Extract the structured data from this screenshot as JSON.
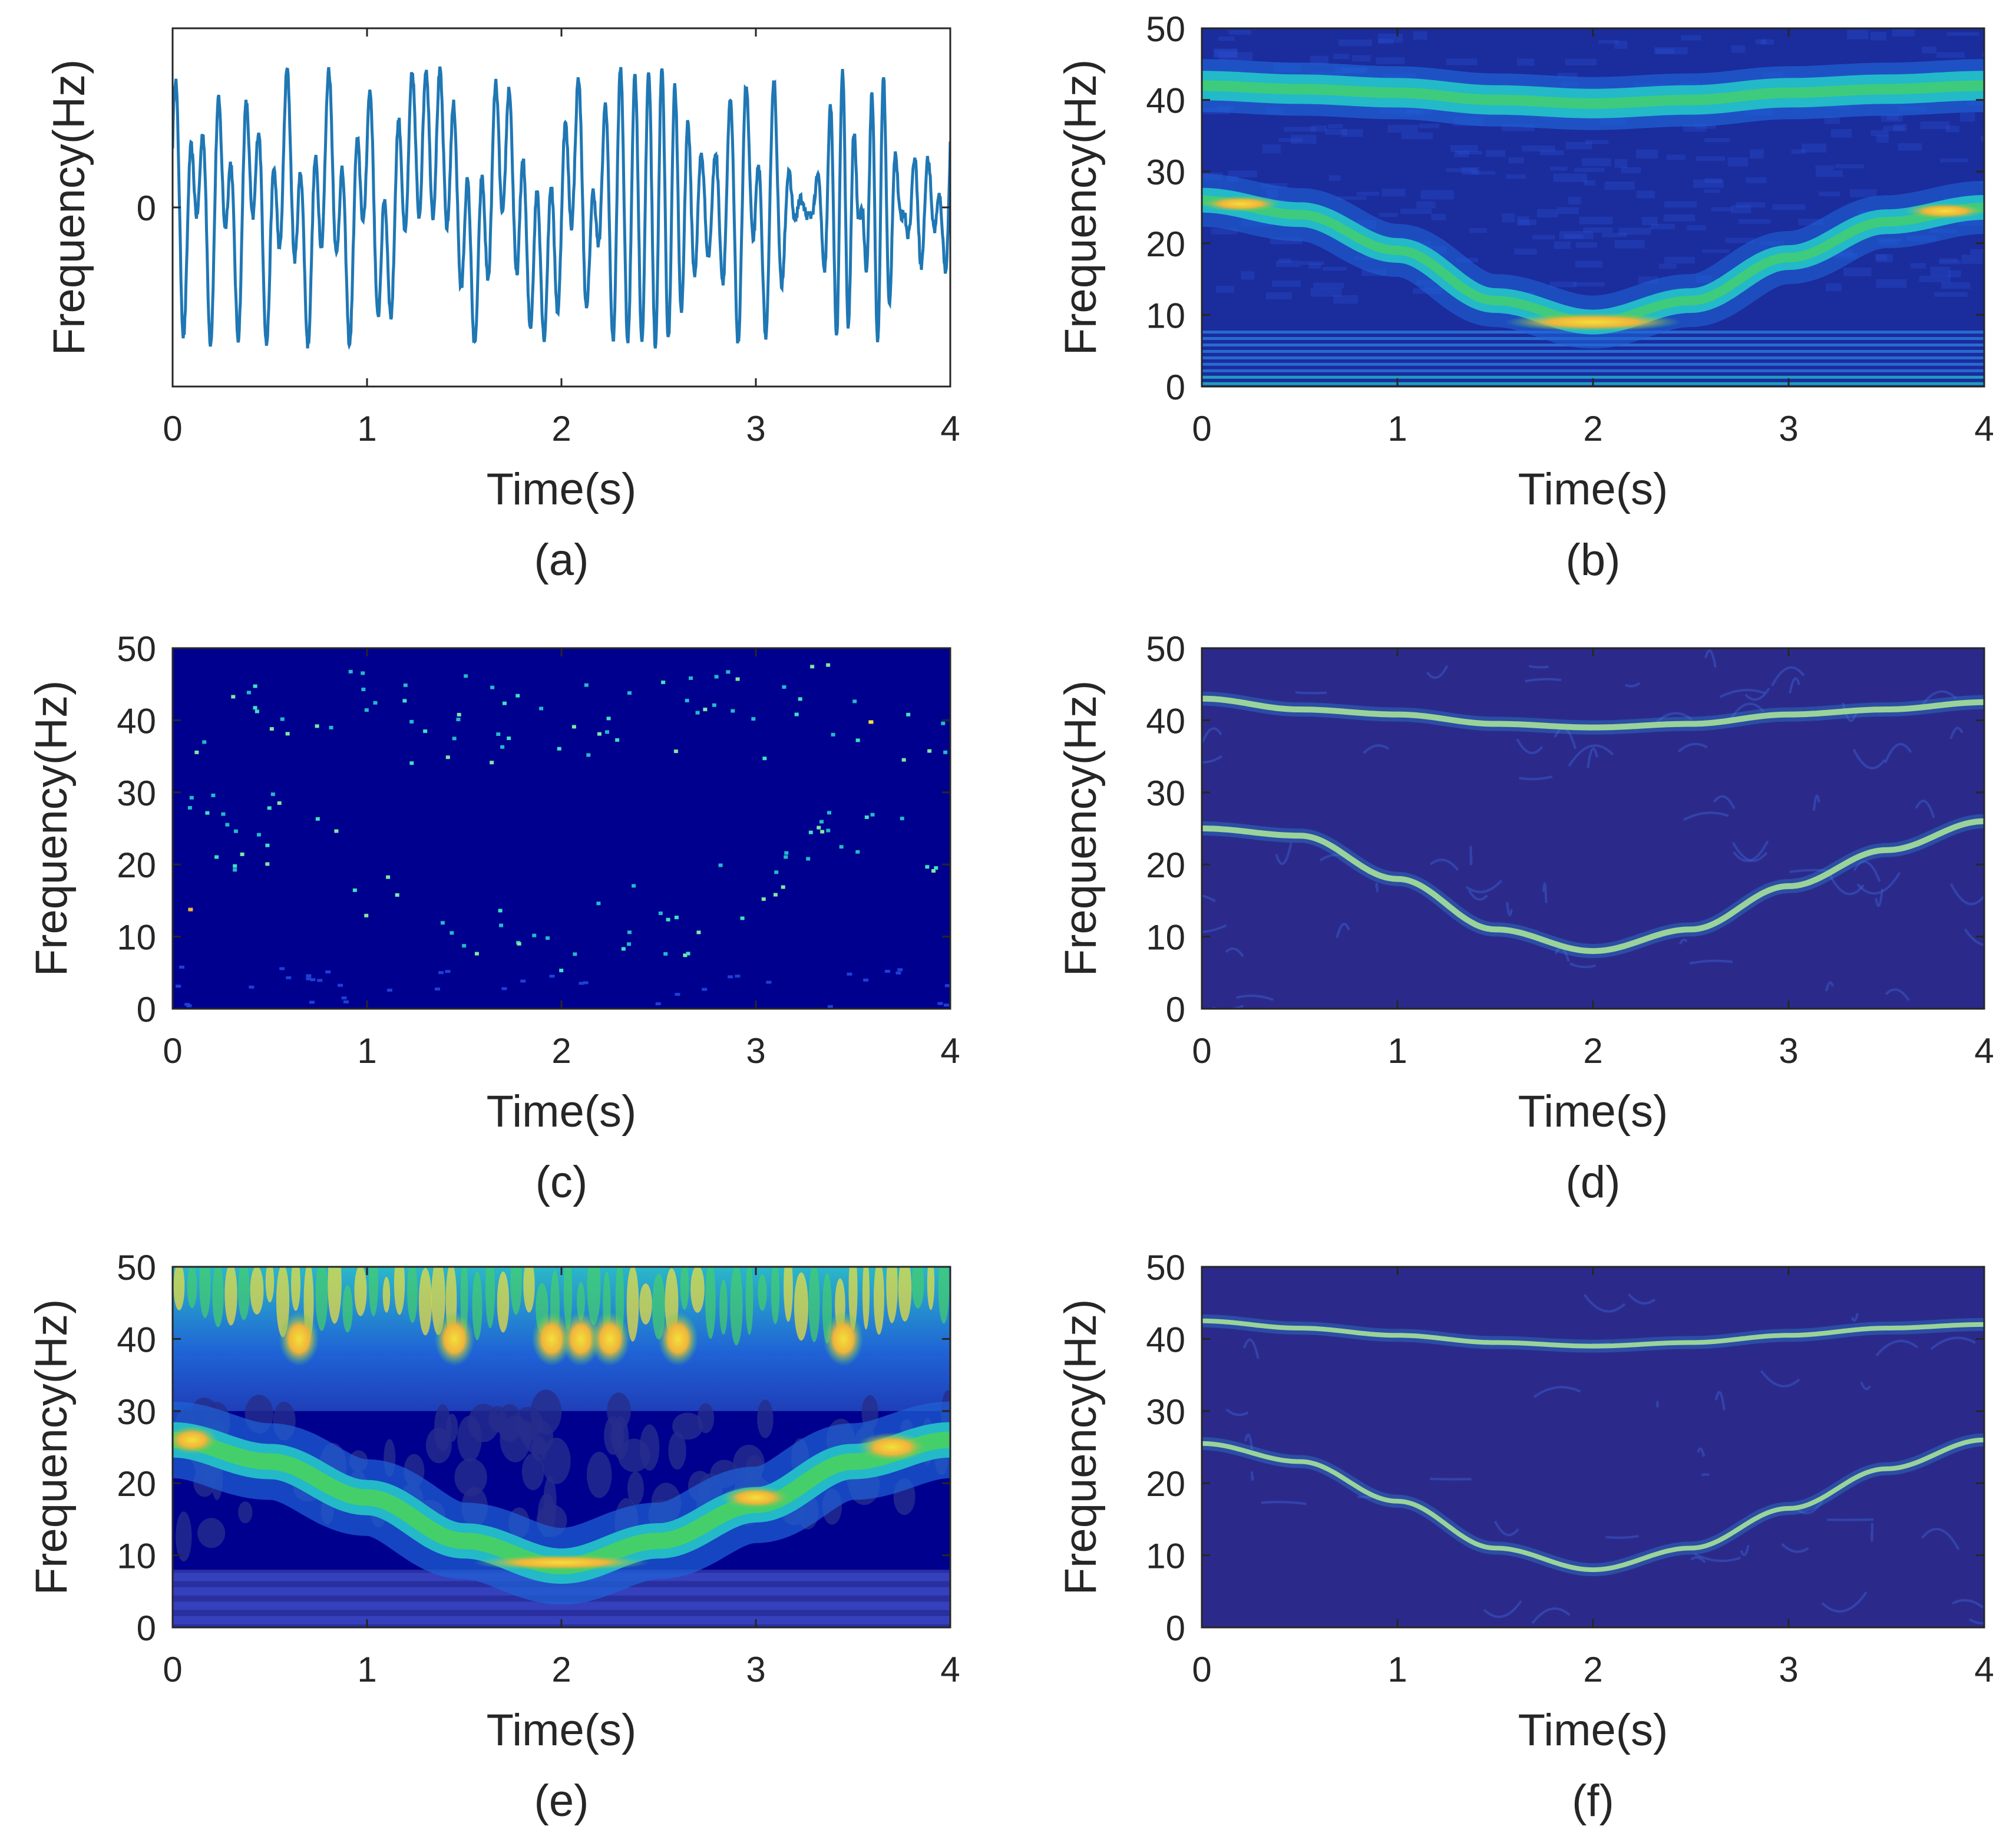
{
  "figure_caption_labels": [
    "(a)",
    "(b)",
    "(c)",
    "(d)",
    "(e)",
    "(f)"
  ],
  "colormap": {
    "background_dark": "#00008f",
    "background_purple": "#2b2a8a",
    "mid_blue": "#1f62d6",
    "cyan": "#23b9c9",
    "green": "#45cf6a",
    "yellow": "#f2e03a",
    "orange": "#f0b43a"
  },
  "signal_color": "#1f77b4",
  "chart_data": [
    {
      "id": "a",
      "type": "line",
      "caption": "(a)",
      "xlabel": "Time(s)",
      "ylabel": "Frequency(Hz)",
      "xlim": [
        0,
        4
      ],
      "ylim": [
        -1.1,
        1.1
      ],
      "xticks": [
        "0",
        "1",
        "2",
        "3",
        "4"
      ],
      "yticks": [
        "0"
      ],
      "series": [
        {
          "name": "signal",
          "description": "oscillating signal, sum of a ~40 Hz and a time-varying 8-26 Hz component",
          "amplitude_range": [
            -0.85,
            0.85
          ]
        }
      ]
    },
    {
      "id": "b",
      "type": "heatmap",
      "caption": "(b)",
      "xlabel": "Time(s)",
      "ylabel": "Frequency(Hz)",
      "xlim": [
        0,
        4
      ],
      "ylim": [
        0,
        50
      ],
      "xticks": [
        "0",
        "1",
        "2",
        "3",
        "4"
      ],
      "yticks": [
        "0",
        "10",
        "20",
        "30",
        "40",
        "50"
      ],
      "ridges": [
        {
          "name": "upper component",
          "t": [
            0,
            0.5,
            1,
            1.5,
            2,
            2.5,
            3,
            3.5,
            4
          ],
          "f": [
            42,
            41.5,
            41,
            40,
            39.5,
            40,
            41,
            41.5,
            42
          ]
        },
        {
          "name": "lower component",
          "t": [
            0,
            0.5,
            1,
            1.5,
            2,
            2.5,
            3,
            3.5,
            4
          ],
          "f": [
            26,
            24,
            19,
            12,
            9,
            12,
            18,
            23,
            25
          ]
        }
      ]
    },
    {
      "id": "c",
      "type": "heatmap",
      "caption": "(c)",
      "xlabel": "Time(s)",
      "ylabel": "Frequency(Hz)",
      "xlim": [
        0,
        4
      ],
      "ylim": [
        0,
        50
      ],
      "xticks": [
        "0",
        "1",
        "2",
        "3",
        "4"
      ],
      "yticks": [
        "0",
        "10",
        "20",
        "30",
        "40",
        "50"
      ],
      "ridges": [
        {
          "name": "upper component",
          "t": [
            0,
            0.5,
            1,
            1.5,
            2,
            2.5,
            3,
            3.5,
            4
          ],
          "f": [
            42,
            41.5,
            41,
            40,
            39.5,
            40,
            41,
            41.5,
            42
          ]
        },
        {
          "name": "lower component",
          "t": [
            0,
            0.5,
            1,
            1.5,
            2,
            2.5,
            3,
            3.5,
            4
          ],
          "f": [
            26,
            24,
            19,
            12,
            9,
            12,
            18,
            23,
            25
          ]
        }
      ]
    },
    {
      "id": "d",
      "type": "heatmap",
      "caption": "(d)",
      "xlabel": "Time(s)",
      "ylabel": "Frequency(Hz)",
      "xlim": [
        0,
        4
      ],
      "ylim": [
        0,
        50
      ],
      "xticks": [
        "0",
        "1",
        "2",
        "3",
        "4"
      ],
      "yticks": [
        "0",
        "10",
        "20",
        "30",
        "40",
        "50"
      ],
      "ridges": [
        {
          "name": "upper component",
          "t": [
            0,
            0.5,
            1,
            1.5,
            2,
            2.5,
            3,
            3.5,
            4
          ],
          "f": [
            43,
            41.5,
            40.8,
            39.5,
            39,
            39.5,
            40.8,
            41.5,
            42.5
          ]
        },
        {
          "name": "lower component",
          "t": [
            0,
            0.5,
            1,
            1.5,
            2,
            2.5,
            3,
            3.5,
            4
          ],
          "f": [
            25,
            24,
            18,
            11,
            8,
            11,
            17,
            22,
            26
          ]
        }
      ]
    },
    {
      "id": "e",
      "type": "heatmap",
      "caption": "(e)",
      "xlabel": "Time(s)",
      "ylabel": "Frequency(Hz)",
      "xlim": [
        0,
        4
      ],
      "ylim": [
        0,
        50
      ],
      "xticks": [
        "0",
        "1",
        "2",
        "3",
        "4"
      ],
      "yticks": [
        "0",
        "10",
        "20",
        "30",
        "40",
        "50"
      ],
      "ridges": [
        {
          "name": "upper component",
          "t": [
            0,
            0.5,
            1,
            1.5,
            2,
            2.5,
            3,
            3.5,
            4
          ],
          "f": [
            41,
            40.5,
            40,
            39.5,
            39,
            39.5,
            40,
            40.5,
            41
          ]
        },
        {
          "name": "lower component",
          "t": [
            0,
            0.5,
            1,
            1.5,
            2,
            2.5,
            3,
            3.5,
            4
          ],
          "f": [
            26,
            23,
            18,
            12,
            8.5,
            12,
            17,
            23,
            26
          ]
        }
      ]
    },
    {
      "id": "f",
      "type": "heatmap",
      "caption": "(f)",
      "xlabel": "Time(s)",
      "ylabel": "Frequency(Hz)",
      "xlim": [
        0,
        4
      ],
      "ylim": [
        0,
        50
      ],
      "xticks": [
        "0",
        "1",
        "2",
        "3",
        "4"
      ],
      "yticks": [
        "0",
        "10",
        "20",
        "30",
        "40",
        "50"
      ],
      "ridges": [
        {
          "name": "upper component",
          "t": [
            0,
            0.5,
            1,
            1.5,
            2,
            2.5,
            3,
            3.5,
            4
          ],
          "f": [
            42.5,
            41.5,
            40.5,
            39.5,
            39,
            39.5,
            40.5,
            41.5,
            42
          ]
        },
        {
          "name": "lower component",
          "t": [
            0,
            0.5,
            1,
            1.5,
            2,
            2.5,
            3,
            3.5,
            4
          ],
          "f": [
            25.5,
            23,
            17.5,
            11,
            8,
            11,
            16.5,
            22,
            26
          ]
        }
      ]
    }
  ]
}
